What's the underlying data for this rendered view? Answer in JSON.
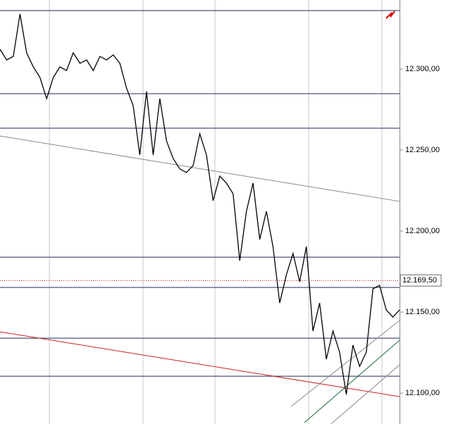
{
  "chart_data": {
    "type": "line",
    "xlim": [
      0,
      60
    ],
    "ylim": [
      12080.9,
      12342.6
    ],
    "yticks": [
      {
        "value": 12100,
        "label": "12.100,00"
      },
      {
        "value": 12150,
        "label": "12.150,00"
      },
      {
        "value": 12200,
        "label": "12.200,00"
      },
      {
        "value": 12250,
        "label": "12.250,00"
      },
      {
        "value": 12300,
        "label": "12.300,00"
      }
    ],
    "series": [
      {
        "color": "#000000",
        "values": [
          12312.2,
          12305.6,
          12307.8,
          12333.9,
          12310.0,
          12301.3,
          12294.8,
          12281.7,
          12294.8,
          12301.3,
          12299.1,
          12310.0,
          12303.5,
          12305.6,
          12299.1,
          12307.8,
          12305.6,
          12308.7,
          12303.5,
          12288.3,
          12277.4,
          12246.9,
          12286.1,
          12246.9,
          12281.7,
          12255.6,
          12244.8,
          12238.3,
          12236.1,
          12240.4,
          12260.0,
          12246.9,
          12218.7,
          12233.9,
          12229.6,
          12223.0,
          12181.7,
          12212.2,
          12229.6,
          12194.8,
          12212.2,
          12190.4,
          12155.6,
          12173.0,
          12186.1,
          12168.7,
          12190.4,
          12138.3,
          12155.6,
          12120.9,
          12138.3,
          12125.2,
          12099.1,
          12129.6,
          12116.5,
          12125.2,
          12164.3,
          12166.5,
          12151.3,
          12146.9,
          12151.3
        ]
      }
    ],
    "levels": [
      12336.1,
      12284.8,
      12263.5,
      12183.9,
      12165.2,
      12133.9,
      12110.4
    ],
    "level_color": "#1f2a5c",
    "last_price": {
      "value": 12169.5,
      "label": "12.169,50",
      "color": "#c00000"
    },
    "trendlines": [
      {
        "color": "#888888",
        "x": [
          0,
          60
        ],
        "values": [
          12258.7,
          12218.3
        ]
      },
      {
        "color": "#d02020",
        "x": [
          0,
          60
        ],
        "values": [
          12137.8,
          12097.8
        ]
      },
      {
        "color": "#888888",
        "x": [
          43.7,
          60
        ],
        "values": [
          12091.7,
          12144.8
        ]
      },
      {
        "color": "#1e6b3a",
        "x": [
          45.7,
          60
        ],
        "values": [
          12081.7,
          12132.6
        ]
      },
      {
        "color": "#888888",
        "x": [
          49.7,
          60
        ],
        "values": [
          12080.9,
          12117.4
        ]
      }
    ]
  }
}
